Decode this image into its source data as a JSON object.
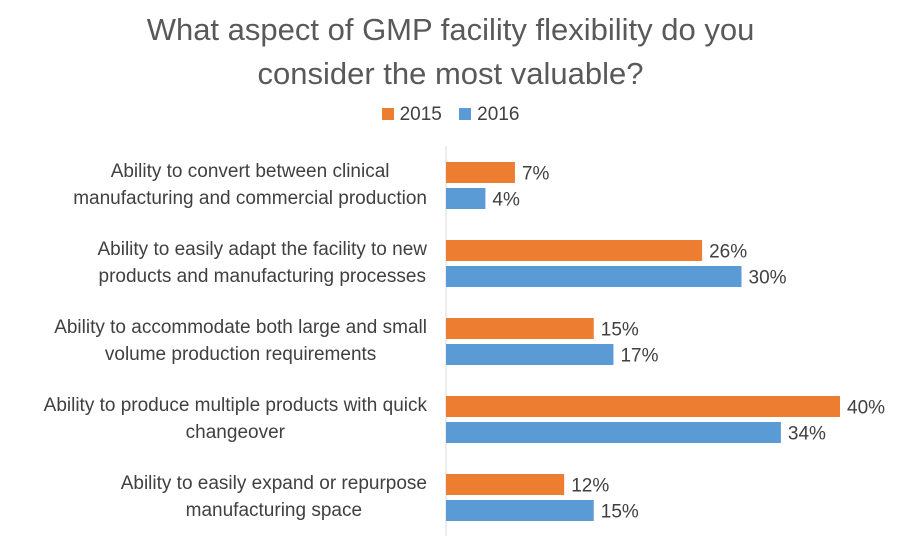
{
  "chart_data": {
    "type": "bar",
    "orientation": "horizontal",
    "title": "What aspect of GMP facility flexibility do you consider the most valuable?",
    "title_lines": [
      "What aspect of GMP facility flexibility do you",
      "consider the most valuable?"
    ],
    "legend_position": "top",
    "grid": false,
    "xlim": [
      0,
      40
    ],
    "categories": [
      "Ability to convert between clinical\nmanufacturing and commercial production",
      "Ability to easily adapt the facility to new\nproducts and manufacturing processes",
      "Ability to accommodate both large and small\nvolume production requirements",
      "Ability to produce multiple products with quick\nchangeover",
      "Ability to easily expand or repurpose\nmanufacturing space"
    ],
    "series": [
      {
        "name": "2015",
        "color": "#ED7D31",
        "values": [
          7,
          26,
          15,
          40,
          12
        ],
        "labels": [
          "7%",
          "26%",
          "15%",
          "40%",
          "12%"
        ]
      },
      {
        "name": "2016",
        "color": "#5B9BD5",
        "values": [
          4,
          30,
          17,
          34,
          15
        ],
        "labels": [
          "4%",
          "30%",
          "17%",
          "34%",
          "15%"
        ]
      }
    ]
  }
}
